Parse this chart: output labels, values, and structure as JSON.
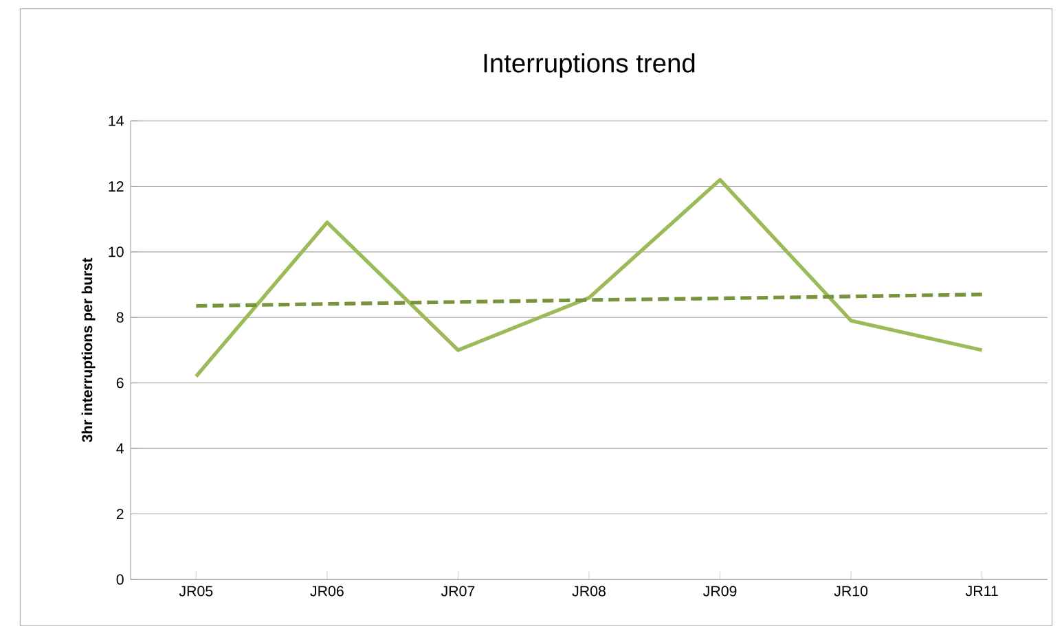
{
  "chart_data": {
    "type": "line",
    "title": "Interruptions trend",
    "ylabel": "3hr interruptions per burst",
    "categories": [
      "JR05",
      "JR06",
      "JR07",
      "JR08",
      "JR09",
      "JR10",
      "JR11"
    ],
    "series": [
      {
        "color": "#9bbb59",
        "line_style": "solid",
        "values": [
          6.2,
          10.9,
          7.0,
          8.6,
          12.2,
          7.9,
          7.0
        ]
      },
      {
        "color": "#77933c",
        "line_style": "dashed",
        "values": [
          8.35,
          8.41,
          8.47,
          8.53,
          8.58,
          8.64,
          8.7
        ]
      }
    ],
    "ylim": [
      0,
      14
    ],
    "yticks": [
      0,
      2,
      4,
      6,
      8,
      10,
      12,
      14
    ],
    "grid": "y",
    "marker": "none"
  }
}
